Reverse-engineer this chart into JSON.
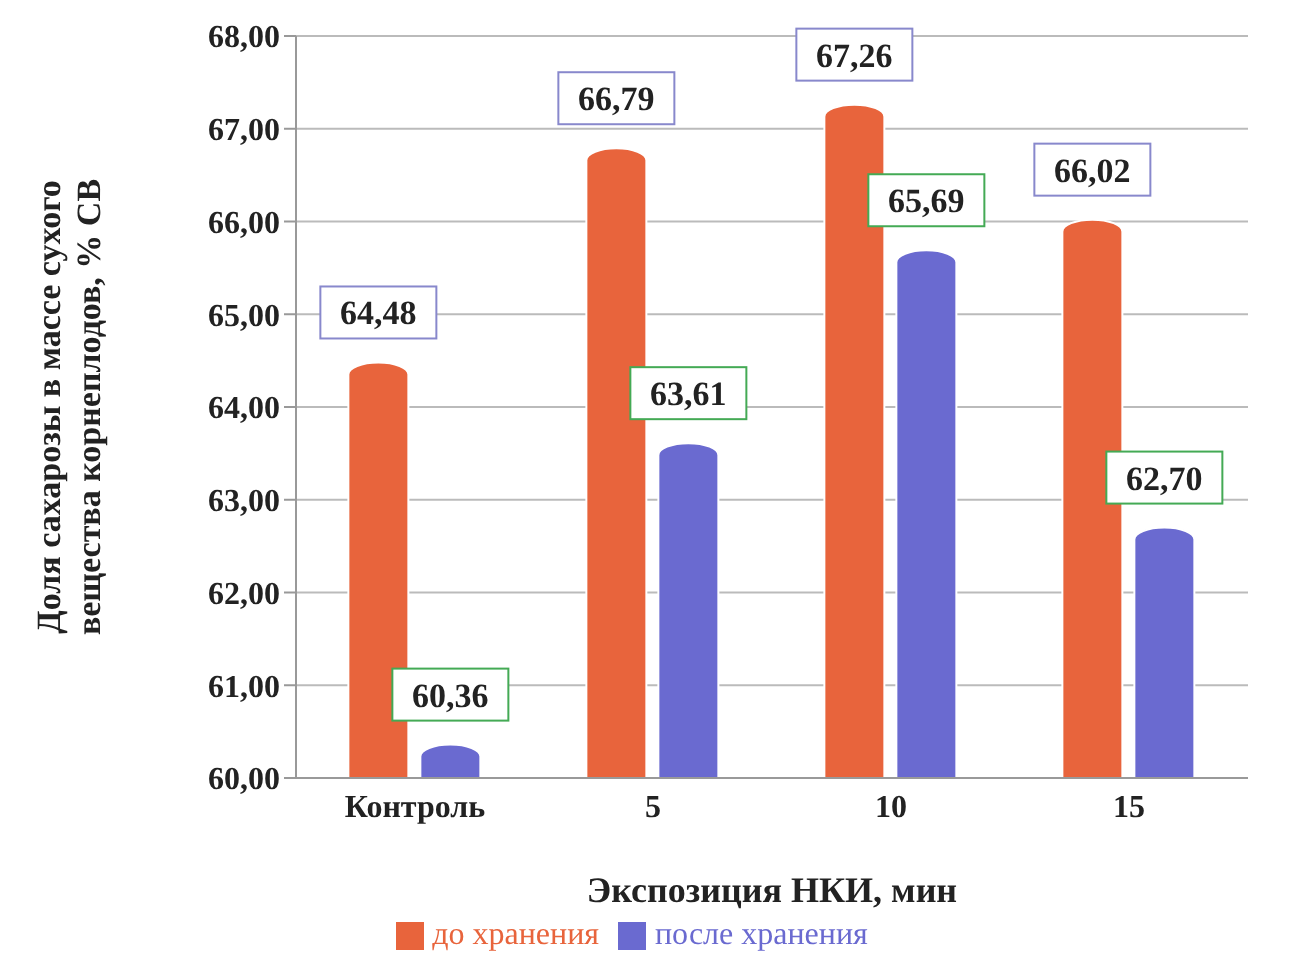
{
  "chart_data": {
    "type": "bar",
    "xlabel": "Экспозиция НКИ, мин",
    "ylabel": "Доля сахарозы в массе сухого вещества корнеплодов, % СВ",
    "categories": [
      "Контроль",
      "5",
      "10",
      "15"
    ],
    "series": [
      {
        "name": "до хранения",
        "color": "#e8643c",
        "values": [
          64.48,
          66.79,
          67.26,
          66.02
        ],
        "value_labels": [
          "64,48",
          "66,79",
          "67,26",
          "66,02"
        ]
      },
      {
        "name": "после хранения",
        "color": "#6a6ad0",
        "values": [
          60.36,
          63.61,
          65.69,
          62.7
        ],
        "value_labels": [
          "60,36",
          "63,61",
          "65,69",
          "62,70"
        ]
      }
    ],
    "ylim": [
      60,
      68
    ],
    "yticks": [
      {
        "value": 60,
        "label": "60,00"
      },
      {
        "value": 61,
        "label": "61,00"
      },
      {
        "value": 62,
        "label": "62,00"
      },
      {
        "value": 63,
        "label": "63,00"
      },
      {
        "value": 64,
        "label": "64,00"
      },
      {
        "value": 65,
        "label": "65,00"
      },
      {
        "value": 66,
        "label": "66,00"
      },
      {
        "value": 67,
        "label": "67,00"
      },
      {
        "value": 68,
        "label": "68,00"
      }
    ],
    "grid": "y",
    "legend": "bottom"
  }
}
